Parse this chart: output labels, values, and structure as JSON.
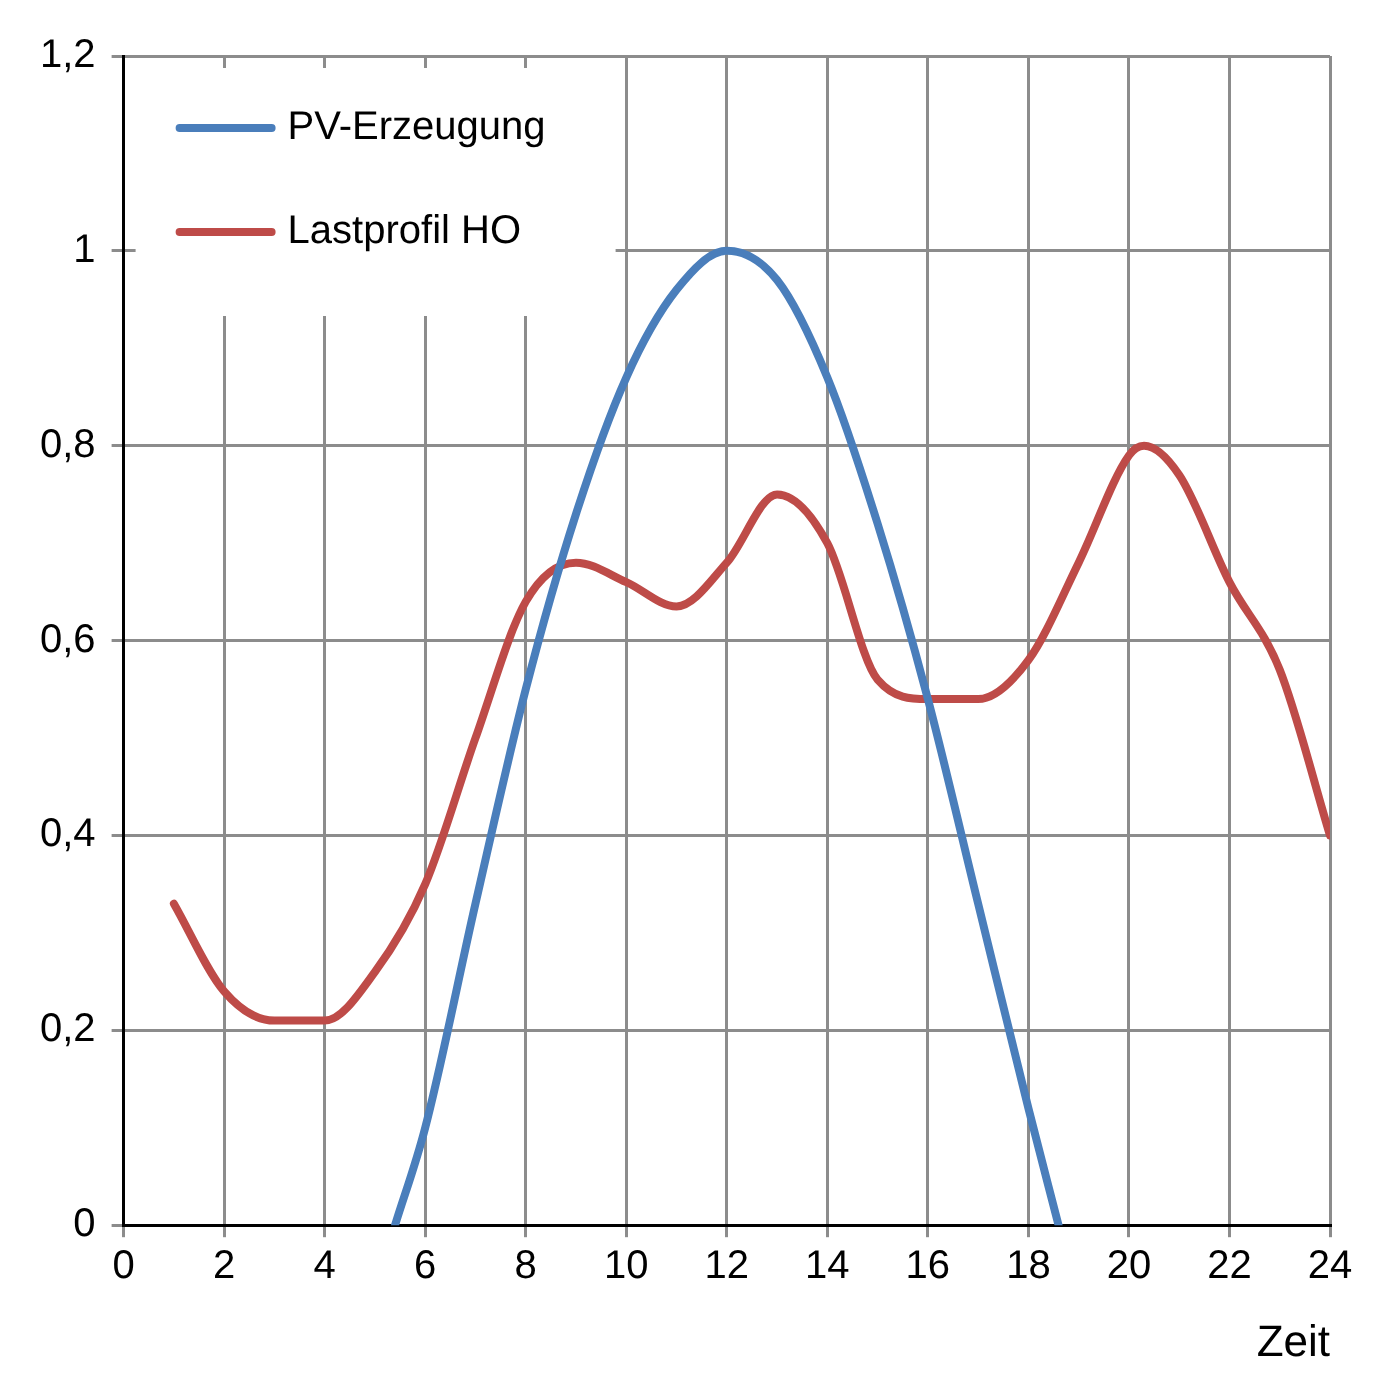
{
  "chart_data": {
    "type": "line",
    "xlabel": "Zeit",
    "xlim": [
      0,
      24
    ],
    "xticks": [
      0,
      2,
      4,
      6,
      8,
      10,
      12,
      14,
      16,
      18,
      20,
      22,
      24
    ],
    "ylim": [
      0,
      1.2
    ],
    "yticks": [
      0,
      {
        "value": 0.2,
        "label": "0,2"
      },
      {
        "value": 0.4,
        "label": "0,4"
      },
      {
        "value": 0.6,
        "label": "0,6"
      },
      {
        "value": 0.8,
        "label": "0,8"
      },
      1,
      {
        "value": 1.2,
        "label": "1,2"
      }
    ],
    "grid": true,
    "legend": "top left",
    "marker": "none",
    "series": [
      {
        "name": "PV-Erzeugung",
        "color": "#4a7ebb",
        "x": [
          5.4,
          6,
          7,
          8,
          9,
          10,
          11,
          12,
          13,
          14,
          15,
          16,
          17,
          18,
          18.6
        ],
        "values": [
          0,
          0.1,
          0.33,
          0.55,
          0.73,
          0.87,
          0.96,
          1,
          0.97,
          0.87,
          0.72,
          0.54,
          0.33,
          0.12,
          0
        ]
      },
      {
        "name": "Lastprofil HO",
        "color": "#be4b48",
        "x": [
          1,
          2,
          3,
          4,
          5,
          6,
          7,
          8,
          9,
          10,
          11,
          12,
          13,
          14,
          15,
          16,
          17,
          18,
          19,
          20,
          20.3,
          21,
          22,
          23,
          24
        ],
        "values": [
          0.33,
          0.24,
          0.21,
          0.21,
          0.26,
          0.35,
          0.5,
          0.64,
          0.68,
          0.66,
          0.635,
          0.68,
          0.75,
          0.7,
          0.56,
          0.54,
          0.54,
          0.58,
          0.68,
          0.79,
          0.8,
          0.77,
          0.66,
          0.57,
          0.4
        ]
      }
    ]
  }
}
